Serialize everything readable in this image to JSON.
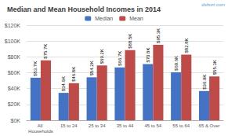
{
  "chart_data": {
    "type": "bar",
    "title": "Median and Mean Household Incomes in 2014",
    "categories": [
      "All Households",
      "15 to 24",
      "25 to 34",
      "35 to 44",
      "45 to 54",
      "55 to 64",
      "65 & Over"
    ],
    "series": [
      {
        "name": "Median",
        "color": "#4472C4",
        "values": [
          53.7,
          34.6,
          54.2,
          66.7,
          70.8,
          60.6,
          36.9
        ],
        "value_labels": [
          "$53.7K",
          "$34.6K",
          "$54.2K",
          "$66.7K",
          "$70.8K",
          "$60.6K",
          "$36.9K"
        ]
      },
      {
        "name": "Mean",
        "color": "#BE4B48",
        "values": [
          75.7,
          46.8,
          69.2,
          88.5,
          95.3,
          82.8,
          55.3
        ],
        "value_labels": [
          "$75.7K",
          "$46.8K",
          "$69.2K",
          "$88.5K",
          "$95.3K",
          "$82.8K",
          "$55.3K"
        ]
      }
    ],
    "ylim": [
      0,
      120
    ],
    "yticks": [
      {
        "value": 0,
        "label": "$0K"
      },
      {
        "value": 20,
        "label": "$20K"
      },
      {
        "value": 40,
        "label": "$40K"
      },
      {
        "value": 60,
        "label": "$60K"
      },
      {
        "value": 80,
        "label": "$80K"
      },
      {
        "value": 100,
        "label": "$100K"
      },
      {
        "value": 120,
        "label": "$120K"
      }
    ],
    "grid": true,
    "legend": "top",
    "data_labels": true,
    "annotations": [
      {
        "text": "dshort.com",
        "color": "#5B9BD5"
      }
    ]
  }
}
